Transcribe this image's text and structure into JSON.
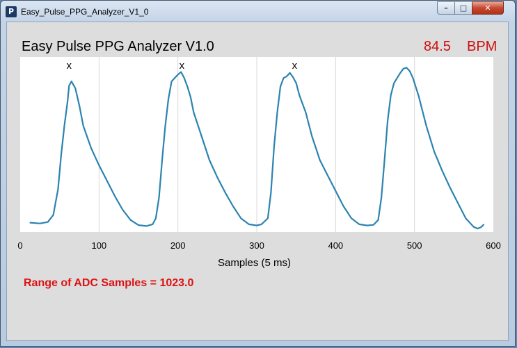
{
  "window": {
    "title": "Easy_Pulse_PPG_Analyzer_V1_0",
    "app_icon": "P",
    "minimize_glyph": "–",
    "maximize_glyph": "□",
    "close_glyph": "✕"
  },
  "header": {
    "app_title": "Easy Pulse PPG Analyzer V1.0",
    "bpm_value": "84.5",
    "bpm_unit": "BPM"
  },
  "status": {
    "range_text": "Range of ADC Samples = 1023.0"
  },
  "colors": {
    "signal": "#2b83b0",
    "accent_text": "#cc1111",
    "plot_background": "#ffffff",
    "grid": "#d9d9d9"
  },
  "chart_data": {
    "type": "line",
    "xlabel": "Samples (5 ms)",
    "ylabel": "",
    "xlim": [
      0,
      600
    ],
    "ylim": [
      0,
      1023
    ],
    "x_ticks": [
      0,
      100,
      200,
      300,
      400,
      500,
      600
    ],
    "grid_vertical": true,
    "legend": false,
    "peak_marker": "x",
    "peak_x": [
      62,
      205,
      348
    ],
    "series": [
      {
        "x": [
          12,
          25,
          35,
          42,
          48,
          52,
          56,
          60,
          62,
          65,
          70,
          75,
          80,
          90,
          100,
          110,
          120,
          130,
          140,
          150,
          160,
          168,
          172,
          176,
          180,
          184,
          188,
          192,
          196,
          200,
          204,
          208,
          212,
          216,
          220,
          230,
          240,
          250,
          260,
          270,
          280,
          290,
          300,
          306,
          314,
          318,
          322,
          326,
          330,
          334,
          338,
          342,
          346,
          350,
          354,
          358,
          362,
          370,
          380,
          390,
          400,
          410,
          420,
          430,
          440,
          448,
          454,
          458,
          462,
          466,
          470,
          474,
          478,
          482,
          486,
          490,
          494,
          498,
          505,
          515,
          525,
          535,
          545,
          555,
          565,
          575,
          580,
          585,
          588
        ],
        "y": [
          55,
          50,
          58,
          100,
          250,
          450,
          620,
          760,
          855,
          880,
          840,
          740,
          620,
          490,
          390,
          300,
          210,
          130,
          70,
          40,
          35,
          45,
          80,
          200,
          420,
          620,
          780,
          880,
          900,
          920,
          935,
          900,
          850,
          790,
          700,
          560,
          420,
          320,
          230,
          150,
          80,
          45,
          38,
          45,
          80,
          230,
          500,
          700,
          850,
          900,
          910,
          930,
          905,
          870,
          800,
          750,
          700,
          560,
          420,
          330,
          240,
          150,
          80,
          45,
          38,
          42,
          70,
          200,
          420,
          650,
          800,
          870,
          900,
          930,
          955,
          960,
          940,
          900,
          800,
          620,
          470,
          360,
          260,
          170,
          80,
          30,
          20,
          30,
          45
        ]
      }
    ]
  }
}
